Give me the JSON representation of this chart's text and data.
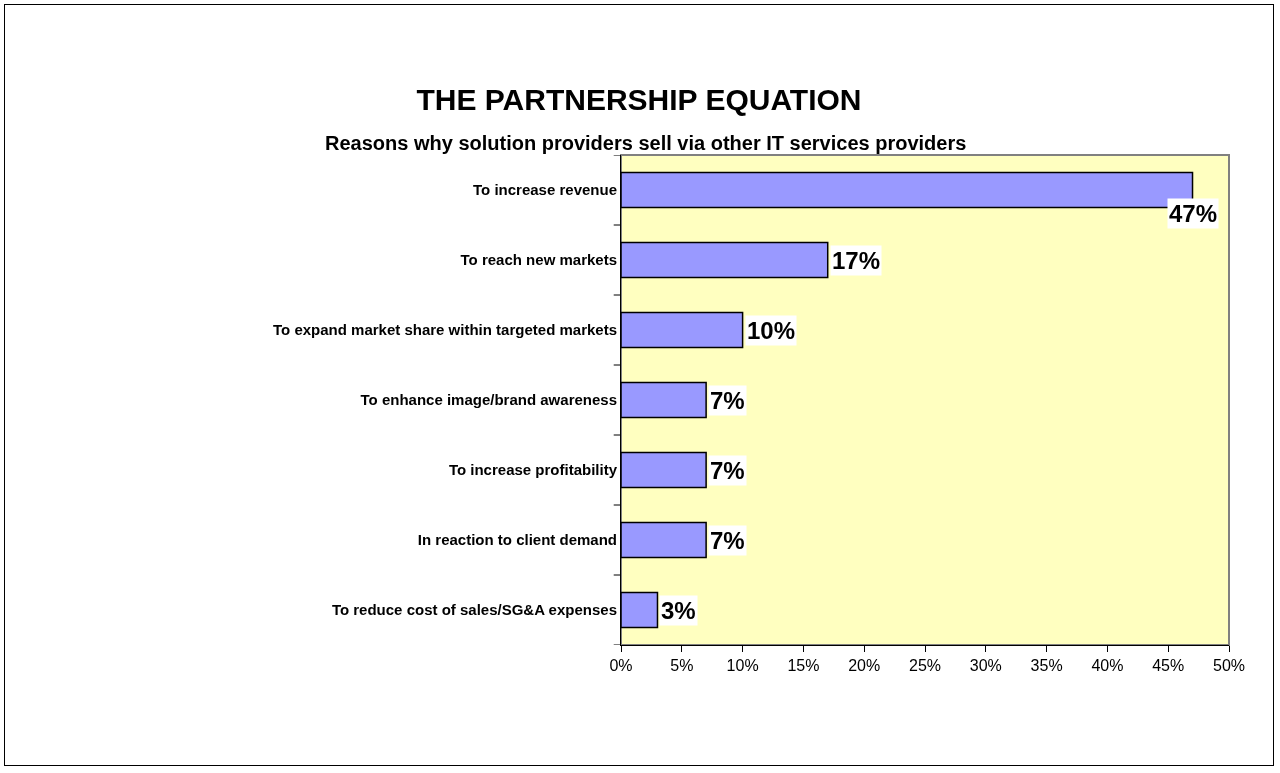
{
  "chart_data": {
    "type": "bar",
    "orientation": "horizontal",
    "title": "THE PARTNERSHIP EQUATION",
    "subtitle": "Reasons why solution providers sell via other IT services providers",
    "categories": [
      "To increase revenue",
      "To reach new markets",
      "To expand market share within targeted markets",
      "To enhance image/brand awareness",
      "To increase profitability",
      "In reaction to client demand",
      "To reduce cost of sales/SG&A expenses"
    ],
    "values": [
      47,
      17,
      10,
      7,
      7,
      7,
      3
    ],
    "value_labels": [
      "47%",
      "17%",
      "10%",
      "7%",
      "7%",
      "7%",
      "3%"
    ],
    "color": "#9999ff",
    "xlim": [
      0,
      50
    ],
    "xticks": [
      {
        "value": 0,
        "label": "0%"
      },
      {
        "value": 5,
        "label": "5%"
      },
      {
        "value": 10,
        "label": "10%"
      },
      {
        "value": 15,
        "label": "15%"
      },
      {
        "value": 20,
        "label": "20%"
      },
      {
        "value": 25,
        "label": "25%"
      },
      {
        "value": 30,
        "label": "30%"
      },
      {
        "value": 35,
        "label": "35%"
      },
      {
        "value": 40,
        "label": "40%"
      },
      {
        "value": 45,
        "label": "45%"
      },
      {
        "value": 50,
        "label": "50%"
      }
    ],
    "grid": false
  }
}
